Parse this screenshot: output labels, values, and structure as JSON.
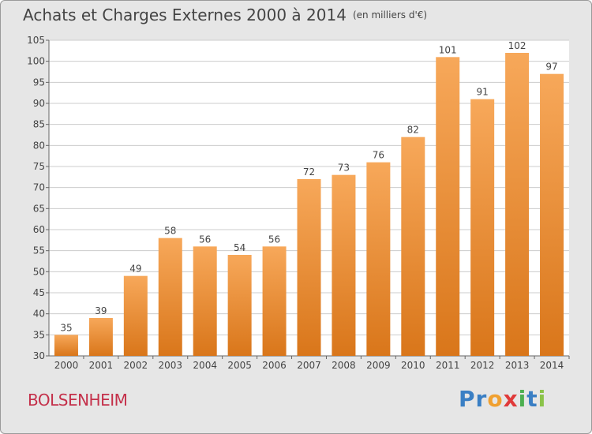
{
  "header": {
    "title": "Achats et Charges Externes 2000 à 2014",
    "unit": "(en milliers d'€)"
  },
  "footer": {
    "commune": "BOLSENHEIM",
    "logo": {
      "text": "Proxiti",
      "letters": [
        "P",
        "r",
        "o",
        "x",
        "i",
        "t",
        "i"
      ],
      "colors": [
        "#3a7fc4",
        "#3a7fc4",
        "#f0a030",
        "#e03a3a",
        "#4caf50",
        "#3a7fc4",
        "#8bc34a"
      ]
    }
  },
  "colors": {
    "bar_top": "#f7a85a",
    "bar_bottom": "#d9761a",
    "background": "#e6e6e6",
    "plot_background": "#ffffff",
    "grid": "#cccccc",
    "commune_text": "#c4304a"
  },
  "chart_data": {
    "type": "bar",
    "categories": [
      "2000",
      "2001",
      "2002",
      "2003",
      "2004",
      "2005",
      "2006",
      "2007",
      "2008",
      "2009",
      "2010",
      "2011",
      "2012",
      "2013",
      "2014"
    ],
    "values": [
      35,
      39,
      49,
      58,
      56,
      54,
      56,
      72,
      73,
      76,
      82,
      101,
      91,
      102,
      97
    ],
    "data_labels": [
      "35",
      "39",
      "49",
      "58",
      "56",
      "54",
      "56",
      "72",
      "73",
      "76",
      "82",
      "101",
      "91",
      "102",
      "97"
    ],
    "ylim": [
      30,
      105
    ],
    "yticks": [
      30,
      35,
      40,
      45,
      50,
      55,
      60,
      65,
      70,
      75,
      80,
      85,
      90,
      95,
      100,
      105
    ],
    "grid": true
  }
}
